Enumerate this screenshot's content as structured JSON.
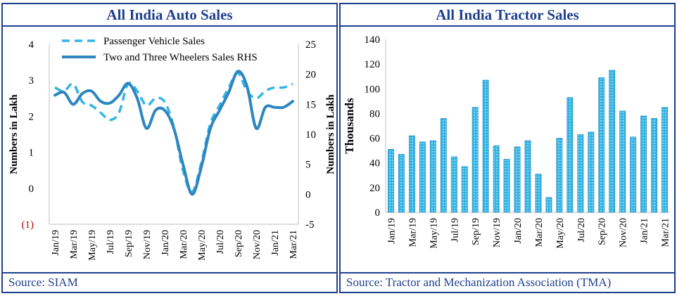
{
  "charts": [
    {
      "panel_title": "All India Auto Sales",
      "source": "Source: SIAM",
      "chart_data": {
        "type": "line",
        "x": [
          "Jan/19",
          "Feb/19",
          "Mar/19",
          "Apr/19",
          "May/19",
          "Jun/19",
          "Jul/19",
          "Aug/19",
          "Sep/19",
          "Oct/19",
          "Nov/19",
          "Dec/19",
          "Jan/20",
          "Feb/20",
          "Mar/20",
          "Apr/20",
          "May/20",
          "Jun/20",
          "Jul/20",
          "Aug/20",
          "Sep/20",
          "Oct/20",
          "Nov/20",
          "Dec/20",
          "Jan/21",
          "Feb/21",
          "Mar/21"
        ],
        "x_tick_labels": [
          "Jan/19",
          "Mar/19",
          "May/19",
          "Jul/19",
          "Sep/19",
          "Nov/19",
          "Jan/20",
          "Mar/20",
          "May/20",
          "Jul/20",
          "Sep/20",
          "Nov/20",
          "Jan/21",
          "Mar/21"
        ],
        "ylabel_left": "Numbers in Lakh",
        "ylabel_right": "Numbers in Lakh",
        "y_left_ticks": [
          "(1)",
          "0",
          "1",
          "2",
          "3",
          "4"
        ],
        "y_right_ticks": [
          "-5",
          "0",
          "5",
          "10",
          "15",
          "20",
          "25"
        ],
        "ylim_left": [
          -1,
          4
        ],
        "ylim_right": [
          -5,
          25
        ],
        "legend": "top-left",
        "grid": false,
        "series": [
          {
            "name": "Passenger Vehicle Sales",
            "axis": "left",
            "style": "dashed",
            "color": "#33b5e5",
            "values": [
              2.8,
              2.7,
              2.9,
              2.4,
              2.3,
              2.1,
              1.9,
              2.1,
              2.9,
              2.7,
              2.3,
              2.5,
              2.4,
              1.7,
              0.5,
              -0.1,
              0.7,
              1.8,
              2.3,
              2.8,
              3.2,
              2.7,
              2.5,
              2.7,
              2.8,
              2.8,
              2.9
            ]
          },
          {
            "name": "Two and Three Wheelers Sales RHS",
            "axis": "right",
            "style": "solid",
            "color": "#2e86c1",
            "values": [
              16.5,
              17,
              15,
              16.8,
              17.2,
              15.5,
              15.2,
              16.5,
              18.5,
              16,
              11,
              14,
              14,
              11,
              5,
              0,
              4.5,
              11,
              14,
              17,
              20.5,
              18,
              11,
              14.5,
              14.5,
              14.5,
              15.5
            ]
          }
        ],
        "left_tick_label_colors": {
          "(1)": "#c00000"
        }
      }
    },
    {
      "panel_title": "All India Tractor Sales",
      "source": "Source: Tractor and Mechanization Association (TMA)",
      "chart_data": {
        "type": "bar",
        "categories": [
          "Jan/19",
          "Feb/19",
          "Mar/19",
          "Apr/19",
          "May/19",
          "Jun/19",
          "Jul/19",
          "Aug/19",
          "Sep/19",
          "Oct/19",
          "Nov/19",
          "Dec/19",
          "Jan/20",
          "Feb/20",
          "Mar/20",
          "Apr/20",
          "May/20",
          "Jun/20",
          "Jul/20",
          "Aug/20",
          "Sep/20",
          "Oct/20",
          "Nov/20",
          "Dec/20",
          "Jan/21",
          "Feb/21",
          "Mar/21"
        ],
        "x_tick_labels": [
          "Jan/19",
          "Mar/19",
          "May/19",
          "Jul/19",
          "Sep/19",
          "Nov/19",
          "Jan/20",
          "Mar/20",
          "May/20",
          "Jul/20",
          "Sep/20",
          "Nov/20",
          "Jan/21",
          "Mar/21"
        ],
        "values": [
          51,
          47,
          62,
          57,
          58,
          76,
          45,
          37,
          85,
          107,
          54,
          43,
          53,
          58,
          31,
          12,
          60,
          93,
          63,
          65,
          109,
          115,
          82,
          61,
          78,
          76,
          85
        ],
        "ylabel": "Thousands",
        "y_ticks": [
          "0",
          "20",
          "40",
          "60",
          "80",
          "100",
          "120",
          "140"
        ],
        "ylim": [
          0,
          140
        ],
        "grid": false,
        "color": "#33b5e5"
      }
    }
  ]
}
